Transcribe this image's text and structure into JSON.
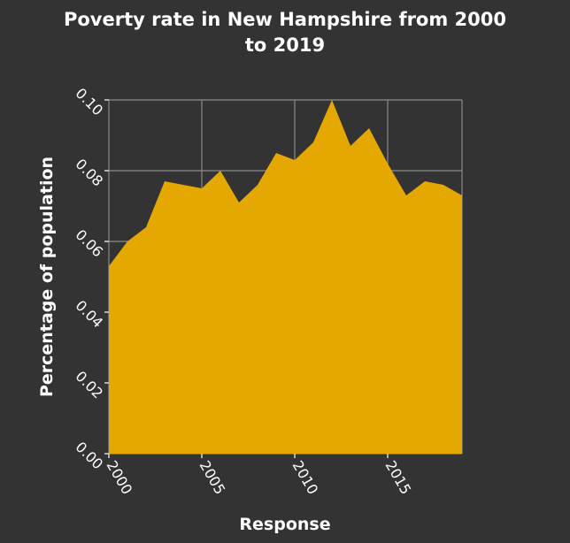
{
  "chart_data": {
    "type": "area",
    "title": "Poverty rate in New Hampshire from 2000 to 2019",
    "title_lines": [
      "Poverty rate in New Hampshire from 2000",
      "to 2019"
    ],
    "xlabel": "Response",
    "ylabel": "Percentage of population",
    "x": [
      2000,
      2001,
      2002,
      2003,
      2004,
      2005,
      2006,
      2007,
      2008,
      2009,
      2010,
      2011,
      2012,
      2013,
      2014,
      2015,
      2016,
      2017,
      2018,
      2019
    ],
    "series": [
      {
        "values": [
          0.053,
          0.06,
          0.064,
          0.077,
          0.076,
          0.075,
          0.08,
          0.071,
          0.076,
          0.085,
          0.083,
          0.088,
          0.1,
          0.087,
          0.092,
          0.082,
          0.073,
          0.077,
          0.076,
          0.073
        ],
        "color": "#e5a800"
      }
    ],
    "xlim": [
      2000,
      2019
    ],
    "ylim": [
      0.0,
      0.1
    ],
    "x_ticks": [
      2000,
      2005,
      2010,
      2015
    ],
    "x_tick_labels": [
      "2000",
      "2005",
      "2010",
      "2015"
    ],
    "y_ticks": [
      0.0,
      0.02,
      0.04,
      0.06,
      0.08,
      0.1
    ],
    "y_tick_labels": [
      "0.00",
      "0.02",
      "0.04",
      "0.06",
      "0.08",
      "0.10"
    ],
    "grid": true,
    "legend": "none",
    "colors": {
      "background": "#333333",
      "area_fill": "#e5a800",
      "grid": "#8a8a8a",
      "text": "#ffffff"
    }
  }
}
